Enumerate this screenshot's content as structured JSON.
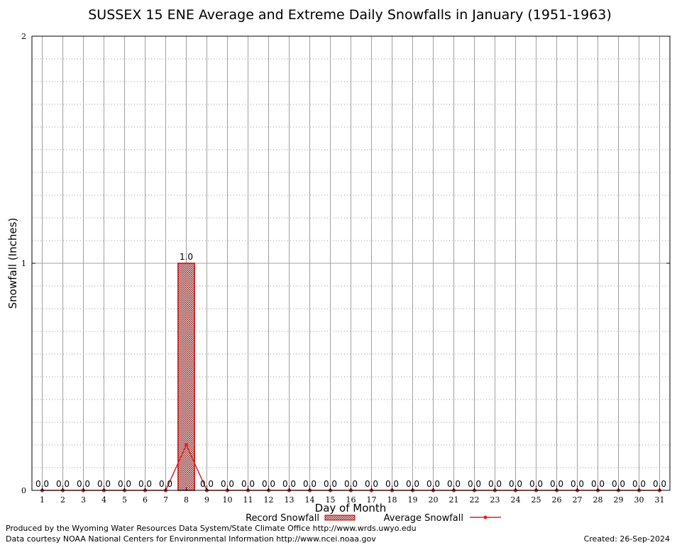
{
  "chart_data": {
    "type": "bar",
    "title": "SUSSEX 15 ENE Average and Extreme Daily Snowfalls in January (1951-1963)",
    "xlabel": "Day of Month",
    "ylabel": "Snowfall (Inches)",
    "ylim": [
      0,
      2
    ],
    "yticks": [
      "0",
      "1",
      "2"
    ],
    "grid": true,
    "categories": [
      "1",
      "2",
      "3",
      "4",
      "5",
      "6",
      "7",
      "8",
      "9",
      "10",
      "11",
      "12",
      "13",
      "14",
      "15",
      "16",
      "17",
      "18",
      "19",
      "20",
      "21",
      "22",
      "23",
      "24",
      "25",
      "26",
      "27",
      "28",
      "29",
      "30",
      "31"
    ],
    "series": [
      {
        "name": "Record Snowfall",
        "type": "bar",
        "values": [
          0,
          0,
          0,
          0,
          0,
          0,
          0,
          1.0,
          0,
          0,
          0,
          0,
          0,
          0,
          0,
          0,
          0,
          0,
          0,
          0,
          0,
          0,
          0,
          0,
          0,
          0,
          0,
          0,
          0,
          0,
          0
        ],
        "labels": [
          "0.0",
          "0.0",
          "0.0",
          "0.0",
          "0.0",
          "0.0",
          "0.0",
          "1.0",
          "0.0",
          "0.0",
          "0.0",
          "0.0",
          "0.0",
          "0.0",
          "0.0",
          "0.0",
          "0.0",
          "0.0",
          "0.0",
          "0.0",
          "0.0",
          "0.0",
          "0.0",
          "0.0",
          "0.0",
          "0.0",
          "0.0",
          "0.0",
          "0.0",
          "0.0",
          "0.0"
        ]
      },
      {
        "name": "Average Snowfall",
        "type": "line",
        "values": [
          0,
          0,
          0,
          0,
          0,
          0,
          0,
          0.2,
          0,
          0,
          0,
          0,
          0,
          0,
          0,
          0,
          0,
          0,
          0,
          0,
          0,
          0,
          0,
          0,
          0,
          0,
          0,
          0,
          0,
          0,
          0
        ]
      }
    ],
    "legend_position": "bottom-center",
    "colors": {
      "bar_fill": "#c8b8b8",
      "bar_edge": "#cc0000",
      "line": "#dd2222",
      "grid": "#a0a0a0"
    }
  },
  "footer": {
    "produced_by": "Produced by the Wyoming Water Resources Data System/State Climate Office http://www.wrds.uwyo.edu",
    "data_courtesy": "Data courtesy NOAA National Centers for Environmental Information http://www.ncei.noaa.gov",
    "created": "Created:  26-Sep-2024"
  }
}
